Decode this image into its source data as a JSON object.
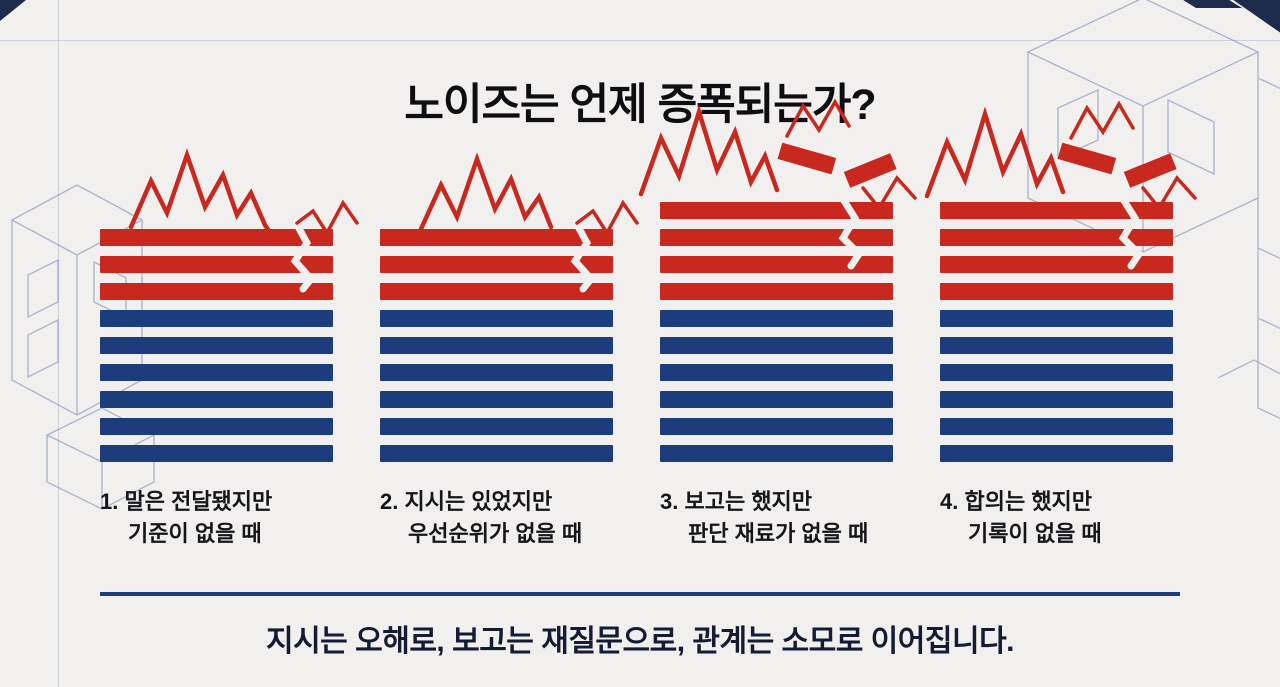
{
  "title": "노이즈는 언제 증폭되는가?",
  "columns": [
    {
      "num": "1.",
      "line1": "말은 전달됐지만",
      "line2": "기준이 없을 때",
      "red_bars": 3,
      "blue_bars": 6,
      "broken": false
    },
    {
      "num": "2.",
      "line1": "지시는 있었지만",
      "line2": "우선순위가 없을 때",
      "red_bars": 3,
      "blue_bars": 6,
      "broken": false
    },
    {
      "num": "3.",
      "line1": "보고는 했지만",
      "line2": "판단 재료가 없을 때",
      "red_bars": 4,
      "blue_bars": 6,
      "broken": true
    },
    {
      "num": "4.",
      "line1": "합의는 했지만",
      "line2": "기록이 없을 때",
      "red_bars": 4,
      "blue_bars": 6,
      "broken": true
    }
  ],
  "footer": "지시는 오해로, 보고는 재질문으로, 관계는 소모로 이어집니다.",
  "colors": {
    "red": "#c8281e",
    "blue": "#1c3c7c",
    "background": "#f2f0ee",
    "title_text": "#0d0d12",
    "caption_text": "#15151a",
    "footer_text": "#131c33",
    "wireframe": "#7188b8",
    "dark_corner": "#1d2b4d"
  }
}
